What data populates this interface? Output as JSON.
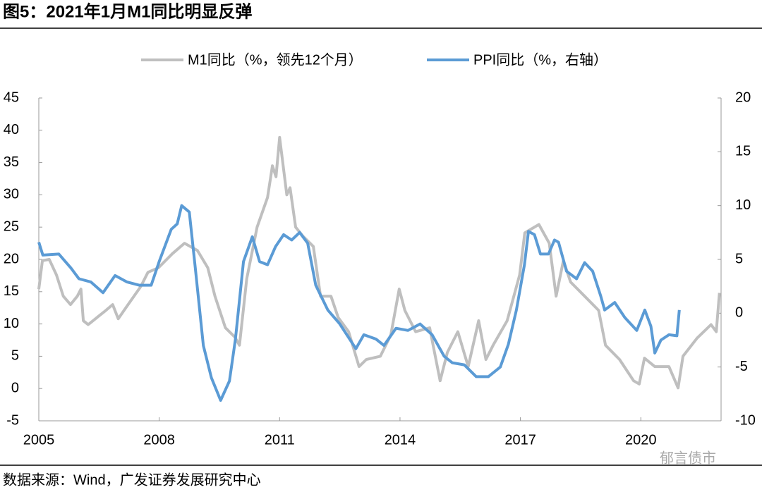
{
  "chart_data": {
    "type": "line",
    "title": "图5：2021年1月M1同比明显反弹",
    "source": "数据来源：Wind，广发证券发展研究中心",
    "watermark": "郁言债市",
    "xlim": [
      2005,
      2022
    ],
    "xticks": [
      2005,
      2008,
      2011,
      2014,
      2017,
      2020
    ],
    "ylim": [
      -5,
      45
    ],
    "yticks": [
      -5,
      0,
      5,
      10,
      15,
      20,
      25,
      30,
      35,
      40,
      45
    ],
    "y2lim": [
      -10,
      20
    ],
    "y2ticks": [
      -10,
      -5,
      0,
      5,
      10,
      15,
      20
    ],
    "series": [
      {
        "name": "M1同比（%，领先12个月）",
        "color": "#bfbfbf",
        "axis": "y",
        "x": [
          2005,
          2005.09,
          2005.26,
          2005.44,
          2005.61,
          2005.79,
          2005.96,
          2006.05,
          2006.11,
          2006.23,
          2006.49,
          2006.67,
          2006.84,
          2006.98,
          2007.19,
          2007.54,
          2007.72,
          2007.98,
          2008.33,
          2008.63,
          2008.95,
          2009.21,
          2009.39,
          2009.65,
          2009.88,
          2010.0,
          2010.18,
          2010.44,
          2010.7,
          2010.82,
          2010.91,
          2011.0,
          2011.18,
          2011.26,
          2011.4,
          2011.58,
          2011.84,
          2012.02,
          2012.28,
          2012.46,
          2012.72,
          2012.98,
          2013.16,
          2013.51,
          2013.77,
          2013.98,
          2014.12,
          2014.39,
          2014.74,
          2015.0,
          2015.18,
          2015.44,
          2015.7,
          2015.96,
          2016.14,
          2016.32,
          2016.67,
          2016.98,
          2017.11,
          2017.46,
          2017.72,
          2017.89,
          2018.07,
          2018.25,
          2018.6,
          2018.95,
          2019.12,
          2019.47,
          2019.82,
          2019.96,
          2020.09,
          2020.35,
          2020.7,
          2020.93,
          2021.05,
          2021.4,
          2021.75,
          2021.88,
          2021.96
        ],
        "values": [
          15.4,
          19.8,
          20,
          17.6,
          14.3,
          13,
          14.3,
          15.4,
          10.5,
          9.9,
          11.2,
          12.1,
          13,
          10.8,
          12.7,
          15.8,
          18,
          18.7,
          20.9,
          22.5,
          21.4,
          18.7,
          14.3,
          9.4,
          8,
          6.7,
          17,
          25,
          29.6,
          34.5,
          32.8,
          38.9,
          30,
          31.1,
          25,
          23.6,
          22,
          14.3,
          14.3,
          11,
          8.8,
          3.4,
          4.5,
          5,
          8.3,
          15.4,
          12.1,
          8.8,
          9.4,
          1.2,
          5.6,
          8.8,
          3.4,
          10.5,
          4.5,
          6.7,
          10.5,
          17.6,
          24.1,
          25.4,
          22.5,
          14.3,
          19.8,
          16.5,
          14.3,
          12.1,
          6.7,
          4.5,
          1.2,
          0.7,
          4.7,
          3.4,
          3.4,
          0.1,
          5,
          7.8,
          9.9,
          8.8,
          14.8
        ]
      },
      {
        "name": "PPI同比（%，右轴）",
        "color": "#5b9bd5",
        "axis": "y2",
        "x": [
          2005,
          2005.1,
          2005.5,
          2005.8,
          2006.0,
          2006.3,
          2006.6,
          2006.9,
          2007.2,
          2007.5,
          2007.8,
          2008.0,
          2008.3,
          2008.45,
          2008.56,
          2008.75,
          2008.9,
          2009.1,
          2009.3,
          2009.53,
          2009.75,
          2009.9,
          2010.1,
          2010.32,
          2010.5,
          2010.7,
          2010.9,
          2011.1,
          2011.3,
          2011.5,
          2011.7,
          2011.9,
          2012.2,
          2012.5,
          2012.9,
          2013.1,
          2013.4,
          2013.6,
          2013.9,
          2014.2,
          2014.5,
          2014.8,
          2015.1,
          2015.3,
          2015.6,
          2015.9,
          2016.2,
          2016.5,
          2016.7,
          2016.9,
          2017.1,
          2017.2,
          2017.35,
          2017.5,
          2017.7,
          2017.85,
          2017.95,
          2018.15,
          2018.4,
          2018.6,
          2018.8,
          2019.0,
          2019.1,
          2019.35,
          2019.6,
          2019.9,
          2020.1,
          2020.25,
          2020.35,
          2020.5,
          2020.7,
          2020.9,
          2020.96
        ],
        "values": [
          6.6,
          5.4,
          5.5,
          4.2,
          3.2,
          2.9,
          1.9,
          3.5,
          2.9,
          2.6,
          2.6,
          4.8,
          7.8,
          8.3,
          10.0,
          9.4,
          4.2,
          -3.0,
          -6.0,
          -8.1,
          -6.3,
          -2.4,
          4.8,
          7.1,
          4.8,
          4.5,
          6.2,
          7.3,
          6.8,
          7.5,
          6.5,
          2.6,
          0.3,
          -1.0,
          -3.3,
          -2.0,
          -2.4,
          -3.0,
          -1.4,
          -1.6,
          -1.0,
          -2.0,
          -4.0,
          -4.6,
          -4.8,
          -5.9,
          -5.9,
          -5.0,
          -2.9,
          0.3,
          4.5,
          7.6,
          7.3,
          5.5,
          5.5,
          6.8,
          6.6,
          3.9,
          3.2,
          4.7,
          3.9,
          1.6,
          0.3,
          1.0,
          -0.4,
          -1.6,
          0.3,
          -1.2,
          -3.7,
          -2.5,
          -2.0,
          -2.1,
          0.3
        ]
      }
    ]
  }
}
